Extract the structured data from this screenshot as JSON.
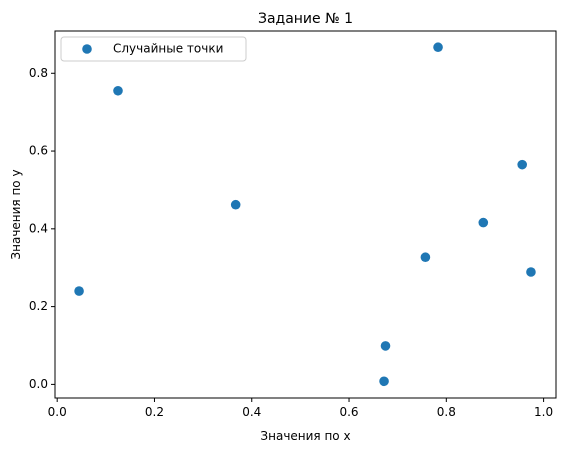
{
  "chart_data": {
    "type": "scatter",
    "title": "Задание № 1",
    "xlabel": "Значения по x",
    "ylabel": "Значения по y",
    "xlim": [
      -0.0045,
      1.0255
    ],
    "ylim": [
      -0.035,
      0.9087
    ],
    "xticks": [
      0.0,
      0.2,
      0.4,
      0.6,
      0.8,
      1.0
    ],
    "xtick_labels": [
      "0.0",
      "0.2",
      "0.4",
      "0.6",
      "0.8",
      "1.0"
    ],
    "yticks": [
      0.0,
      0.2,
      0.4,
      0.6,
      0.8
    ],
    "ytick_labels": [
      "0.0",
      "0.2",
      "0.4",
      "0.6",
      "0.8"
    ],
    "grid": false,
    "legend_position": "top-left",
    "series": [
      {
        "name": "Случайные точки",
        "color": "#1f77b4",
        "points": [
          {
            "x": 0.045,
            "y": 0.24
          },
          {
            "x": 0.125,
            "y": 0.755
          },
          {
            "x": 0.367,
            "y": 0.462
          },
          {
            "x": 0.672,
            "y": 0.008
          },
          {
            "x": 0.675,
            "y": 0.099
          },
          {
            "x": 0.757,
            "y": 0.327
          },
          {
            "x": 0.783,
            "y": 0.867
          },
          {
            "x": 0.876,
            "y": 0.416
          },
          {
            "x": 0.956,
            "y": 0.565
          },
          {
            "x": 0.974,
            "y": 0.289
          }
        ]
      }
    ]
  }
}
